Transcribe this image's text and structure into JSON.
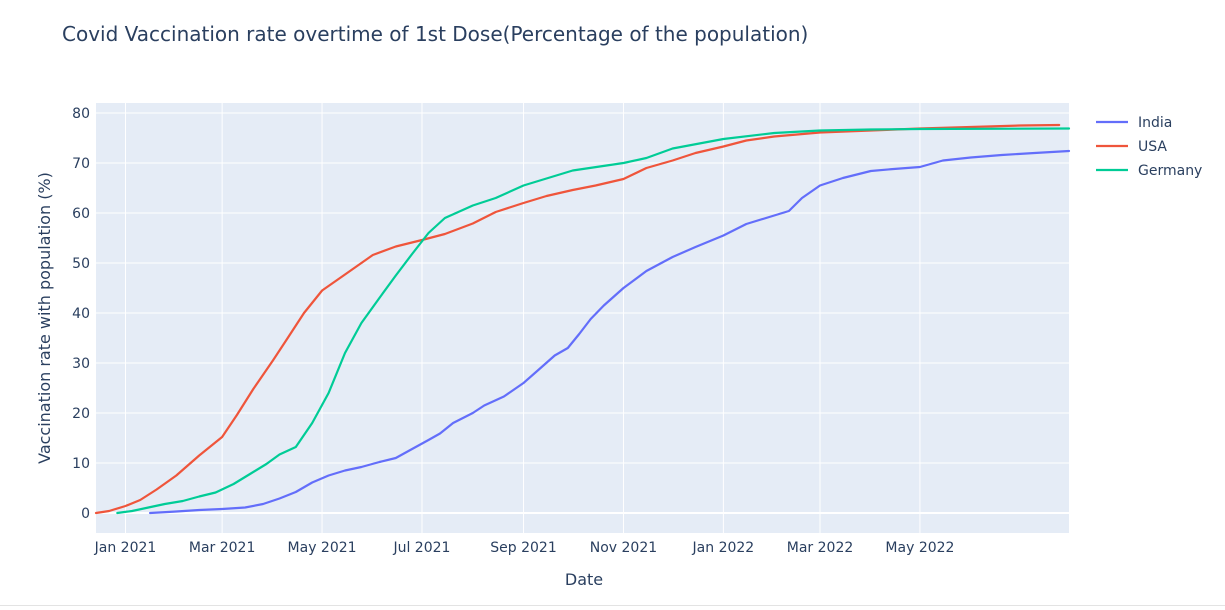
{
  "chart_data": {
    "type": "line",
    "title": "Covid Vaccination rate overtime of 1st Dose(Percentage of the population)",
    "xlabel": "Date",
    "ylabel": "Vaccination rate with population (%)",
    "xlim": [
      "2020-12-14",
      "2022-07-31"
    ],
    "ylim": [
      -4,
      82
    ],
    "x_ticks": [
      {
        "date": "2021-01-01",
        "label": "Jan 2021"
      },
      {
        "date": "2021-03-01",
        "label": "Mar 2021"
      },
      {
        "date": "2021-05-01",
        "label": "May 2021"
      },
      {
        "date": "2021-07-01",
        "label": "Jul 2021"
      },
      {
        "date": "2021-09-01",
        "label": "Sep 2021"
      },
      {
        "date": "2021-11-01",
        "label": "Nov 2021"
      },
      {
        "date": "2022-01-01",
        "label": "Jan 2022"
      },
      {
        "date": "2022-03-01",
        "label": "Mar 2022"
      },
      {
        "date": "2022-05-01",
        "label": "May 2022"
      }
    ],
    "y_ticks": [
      0,
      10,
      20,
      30,
      40,
      50,
      60,
      70,
      80
    ],
    "grid": true,
    "plot_background": "#e5ecf6",
    "legend_position": "right",
    "series": [
      {
        "name": "India",
        "color": "#636efa",
        "points": [
          [
            "2021-01-16",
            0
          ],
          [
            "2021-02-01",
            0.3
          ],
          [
            "2021-02-15",
            0.6
          ],
          [
            "2021-03-01",
            0.8
          ],
          [
            "2021-03-15",
            1.1
          ],
          [
            "2021-03-26",
            1.8
          ],
          [
            "2021-04-05",
            2.9
          ],
          [
            "2021-04-15",
            4.2
          ],
          [
            "2021-04-25",
            6.1
          ],
          [
            "2021-05-05",
            7.5
          ],
          [
            "2021-05-15",
            8.5
          ],
          [
            "2021-05-25",
            9.2
          ],
          [
            "2021-06-05",
            10.2
          ],
          [
            "2021-06-15",
            11.0
          ],
          [
            "2021-06-25",
            12.8
          ],
          [
            "2021-07-05",
            14.6
          ],
          [
            "2021-07-12",
            15.9
          ],
          [
            "2021-07-20",
            18.0
          ],
          [
            "2021-08-01",
            20.0
          ],
          [
            "2021-08-08",
            21.5
          ],
          [
            "2021-08-20",
            23.3
          ],
          [
            "2021-09-01",
            26.0
          ],
          [
            "2021-09-10",
            28.6
          ],
          [
            "2021-09-20",
            31.5
          ],
          [
            "2021-09-28",
            33.0
          ],
          [
            "2021-10-05",
            35.8
          ],
          [
            "2021-10-12",
            38.8
          ],
          [
            "2021-10-20",
            41.5
          ],
          [
            "2021-11-01",
            45.0
          ],
          [
            "2021-11-15",
            48.4
          ],
          [
            "2021-12-01",
            51.2
          ],
          [
            "2021-12-15",
            53.2
          ],
          [
            "2022-01-01",
            55.5
          ],
          [
            "2022-01-15",
            57.8
          ],
          [
            "2022-02-01",
            59.5
          ],
          [
            "2022-02-10",
            60.4
          ],
          [
            "2022-02-18",
            63.0
          ],
          [
            "2022-03-01",
            65.5
          ],
          [
            "2022-03-15",
            67.0
          ],
          [
            "2022-04-01",
            68.4
          ],
          [
            "2022-04-15",
            68.8
          ],
          [
            "2022-05-01",
            69.2
          ],
          [
            "2022-05-15",
            70.5
          ],
          [
            "2022-06-01",
            71.1
          ],
          [
            "2022-06-20",
            71.6
          ],
          [
            "2022-07-10",
            72.0
          ],
          [
            "2022-07-31",
            72.4
          ]
        ]
      },
      {
        "name": "USA",
        "color": "#ef553b",
        "points": [
          [
            "2020-12-14",
            0
          ],
          [
            "2020-12-22",
            0.4
          ],
          [
            "2021-01-01",
            1.4
          ],
          [
            "2021-01-10",
            2.6
          ],
          [
            "2021-01-20",
            4.7
          ],
          [
            "2021-02-01",
            7.5
          ],
          [
            "2021-02-15",
            11.5
          ],
          [
            "2021-03-01",
            15.2
          ],
          [
            "2021-03-10",
            19.6
          ],
          [
            "2021-03-20",
            24.8
          ],
          [
            "2021-04-01",
            30.5
          ],
          [
            "2021-04-10",
            35.0
          ],
          [
            "2021-04-20",
            40.0
          ],
          [
            "2021-05-01",
            44.5
          ],
          [
            "2021-05-15",
            47.7
          ],
          [
            "2021-06-01",
            51.6
          ],
          [
            "2021-06-15",
            53.3
          ],
          [
            "2021-07-01",
            54.6
          ],
          [
            "2021-07-15",
            55.8
          ],
          [
            "2021-08-01",
            57.9
          ],
          [
            "2021-08-15",
            60.2
          ],
          [
            "2021-09-01",
            62.0
          ],
          [
            "2021-09-15",
            63.4
          ],
          [
            "2021-10-01",
            64.6
          ],
          [
            "2021-10-15",
            65.5
          ],
          [
            "2021-11-01",
            66.8
          ],
          [
            "2021-11-15",
            69.0
          ],
          [
            "2021-12-01",
            70.5
          ],
          [
            "2021-12-15",
            72.0
          ],
          [
            "2022-01-01",
            73.3
          ],
          [
            "2022-01-15",
            74.5
          ],
          [
            "2022-02-01",
            75.3
          ],
          [
            "2022-02-15",
            75.7
          ],
          [
            "2022-03-01",
            76.1
          ],
          [
            "2022-04-01",
            76.5
          ],
          [
            "2022-05-01",
            76.9
          ],
          [
            "2022-06-01",
            77.2
          ],
          [
            "2022-07-01",
            77.5
          ],
          [
            "2022-07-25",
            77.6
          ]
        ]
      },
      {
        "name": "Germany",
        "color": "#00cc96",
        "points": [
          [
            "2020-12-27",
            0
          ],
          [
            "2021-01-05",
            0.4
          ],
          [
            "2021-01-15",
            1.1
          ],
          [
            "2021-01-25",
            1.8
          ],
          [
            "2021-02-05",
            2.4
          ],
          [
            "2021-02-15",
            3.3
          ],
          [
            "2021-02-25",
            4.1
          ],
          [
            "2021-03-08",
            5.8
          ],
          [
            "2021-03-18",
            7.8
          ],
          [
            "2021-03-28",
            9.8
          ],
          [
            "2021-04-05",
            11.7
          ],
          [
            "2021-04-15",
            13.2
          ],
          [
            "2021-04-25",
            18.0
          ],
          [
            "2021-05-05",
            24.0
          ],
          [
            "2021-05-15",
            32.0
          ],
          [
            "2021-05-25",
            38.0
          ],
          [
            "2021-06-05",
            43.0
          ],
          [
            "2021-06-15",
            47.5
          ],
          [
            "2021-06-25",
            51.8
          ],
          [
            "2021-07-05",
            56.0
          ],
          [
            "2021-07-15",
            59.0
          ],
          [
            "2021-08-01",
            61.5
          ],
          [
            "2021-08-15",
            63.0
          ],
          [
            "2021-09-01",
            65.5
          ],
          [
            "2021-10-01",
            68.5
          ],
          [
            "2021-11-01",
            70.0
          ],
          [
            "2021-11-15",
            71.0
          ],
          [
            "2021-12-01",
            72.9
          ],
          [
            "2022-01-01",
            74.8
          ],
          [
            "2022-02-01",
            76.0
          ],
          [
            "2022-03-01",
            76.5
          ],
          [
            "2022-04-01",
            76.7
          ],
          [
            "2022-05-01",
            76.8
          ],
          [
            "2022-07-31",
            76.9
          ]
        ]
      }
    ]
  }
}
